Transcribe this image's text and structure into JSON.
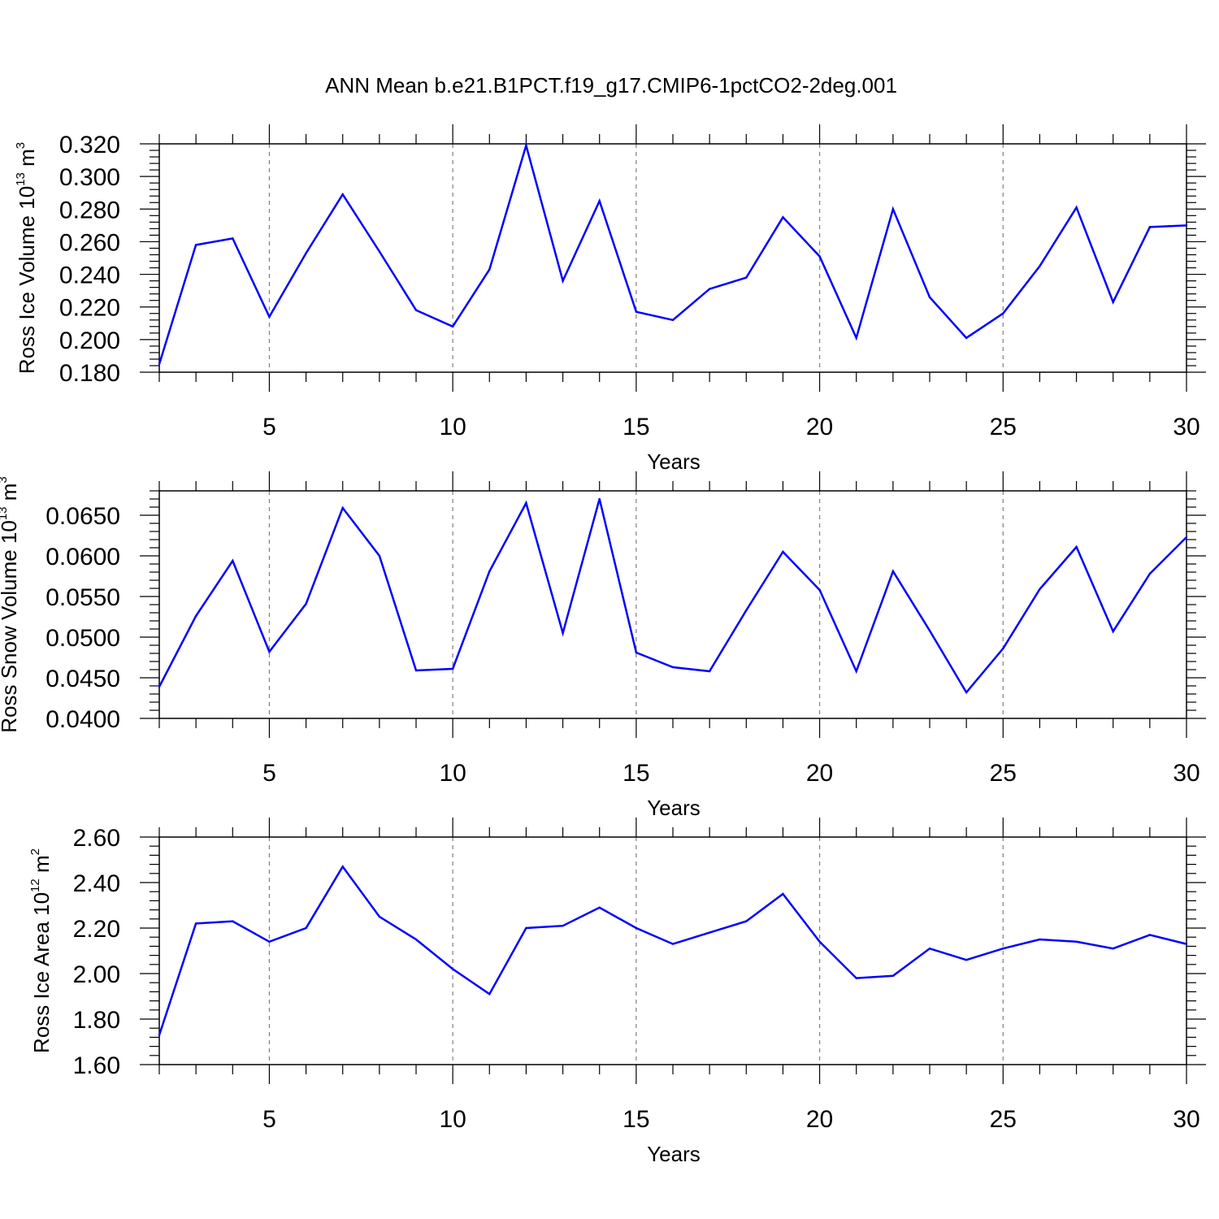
{
  "title": "ANN Mean b.e21.B1PCT.f19_g17.CMIP6-1pctCO2-2deg.001",
  "colors": {
    "series": "#0000ff",
    "axis": "#000000",
    "grid": "#808080"
  },
  "chart_data": [
    {
      "type": "line",
      "ylabel": {
        "prefix": "Ross Ice Volume 10",
        "exp": "13",
        "unit": " m",
        "unit_exp": "3"
      },
      "xlabel": "Years",
      "xlim": [
        2,
        30
      ],
      "ylim": [
        0.18,
        0.32
      ],
      "yticks": [
        "0.180",
        "0.200",
        "0.220",
        "0.240",
        "0.260",
        "0.280",
        "0.300",
        "0.320"
      ],
      "xticks": [
        "5",
        "10",
        "15",
        "20",
        "25",
        "30"
      ],
      "grid": "vertical dashed at major x ticks",
      "x": [
        2,
        3,
        4,
        5,
        6,
        7,
        8,
        9,
        10,
        11,
        12,
        13,
        14,
        15,
        16,
        17,
        18,
        19,
        20,
        21,
        22,
        23,
        24,
        25,
        26,
        27,
        28,
        29,
        30
      ],
      "values": [
        0.185,
        0.258,
        0.262,
        0.214,
        0.253,
        0.289,
        0.254,
        0.218,
        0.208,
        0.243,
        0.319,
        0.236,
        0.285,
        0.217,
        0.212,
        0.231,
        0.238,
        0.275,
        0.251,
        0.201,
        0.28,
        0.226,
        0.201,
        0.216,
        0.245,
        0.281,
        0.223,
        0.269,
        0.27
      ]
    },
    {
      "type": "line",
      "ylabel": {
        "prefix": "Ross Snow Volume 10",
        "exp": "13",
        "unit": " m",
        "unit_exp": "3"
      },
      "xlabel": "Years",
      "xlim": [
        2,
        30
      ],
      "ylim": [
        0.04,
        0.068
      ],
      "yticks": [
        "0.0400",
        "0.0450",
        "0.0500",
        "0.0550",
        "0.0600",
        "0.0650"
      ],
      "xticks": [
        "5",
        "10",
        "15",
        "20",
        "25",
        "30"
      ],
      "grid": "vertical dashed at major x ticks",
      "x": [
        2,
        3,
        4,
        5,
        6,
        7,
        8,
        9,
        10,
        11,
        12,
        13,
        14,
        15,
        16,
        17,
        18,
        19,
        20,
        21,
        22,
        23,
        24,
        25,
        26,
        27,
        28,
        29,
        30
      ],
      "values": [
        0.0439,
        0.0526,
        0.0594,
        0.0482,
        0.0541,
        0.0659,
        0.06,
        0.0459,
        0.0461,
        0.0581,
        0.0665,
        0.0505,
        0.067,
        0.0481,
        0.0463,
        0.0458,
        0.0533,
        0.0605,
        0.0558,
        0.0458,
        0.0581,
        0.0508,
        0.0432,
        0.0486,
        0.0559,
        0.0611,
        0.0507,
        0.0578,
        0.0623
      ]
    },
    {
      "type": "line",
      "ylabel": {
        "prefix": "Ross Ice Area 10",
        "exp": "12",
        "unit": " m",
        "unit_exp": "2"
      },
      "xlabel": "Years",
      "xlim": [
        2,
        30
      ],
      "ylim": [
        1.6,
        2.6
      ],
      "yticks": [
        "1.60",
        "1.80",
        "2.00",
        "2.20",
        "2.40",
        "2.60"
      ],
      "xticks": [
        "5",
        "10",
        "15",
        "20",
        "25",
        "30"
      ],
      "grid": "vertical dashed at major x ticks",
      "x": [
        2,
        3,
        4,
        5,
        6,
        7,
        8,
        9,
        10,
        11,
        12,
        13,
        14,
        15,
        16,
        17,
        18,
        19,
        20,
        21,
        22,
        23,
        24,
        25,
        26,
        27,
        28,
        29,
        30
      ],
      "values": [
        1.73,
        2.22,
        2.23,
        2.14,
        2.2,
        2.47,
        2.25,
        2.15,
        2.02,
        1.91,
        2.2,
        2.21,
        2.29,
        2.2,
        2.13,
        2.18,
        2.23,
        2.35,
        2.14,
        1.98,
        1.99,
        2.11,
        2.06,
        2.11,
        2.15,
        2.14,
        2.11,
        2.17,
        2.13
      ]
    }
  ]
}
